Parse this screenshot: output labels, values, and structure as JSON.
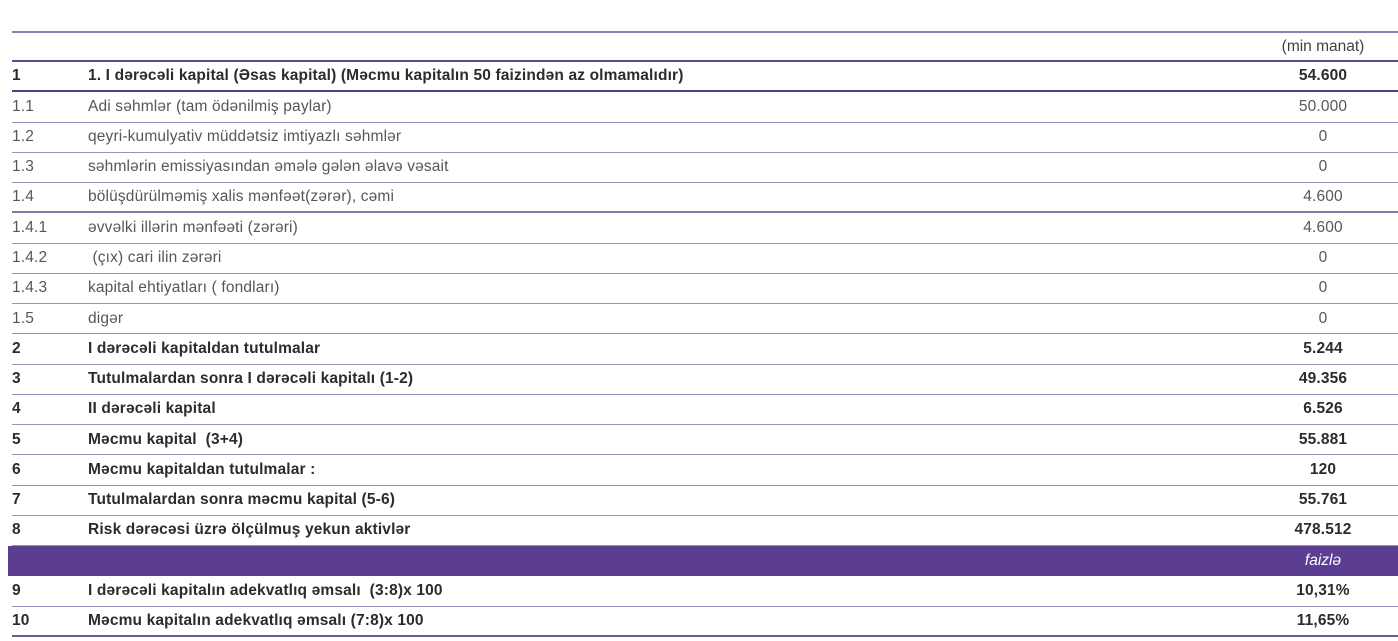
{
  "table": {
    "unit_label": "(min manat)",
    "band_color": "#5b3d92",
    "colors": {
      "separator_line": "#9c8fc0",
      "strong_line": "#5e4a92",
      "bold_text": "#2b2b30",
      "regular_text": "#56565c",
      "band_text": "#ffffff"
    },
    "rows": [
      {
        "num": "1",
        "label": "1. I dərəcəli kapital (Əsas kapital) (Məcmu kapitalın 50 faizindən az olmamalıdır)",
        "value": "54.600",
        "bold": true
      },
      {
        "num": "1.1",
        "label": "Adi səhmlər (tam ödənilmiş paylar)",
        "value": "50.000",
        "bold": false
      },
      {
        "num": "1.2",
        "label": "qeyri-kumulyativ müddətsiz imtiyazlı səhmlər",
        "value": "0",
        "bold": false
      },
      {
        "num": "1.3",
        "label": "səhmlərin emissiyasından əmələ gələn əlavə vəsait",
        "value": "0",
        "bold": false
      },
      {
        "num": "1.4",
        "label": "bölüşdürülməmiş xalis mənfəət(zərər), cəmi",
        "value": "4.600",
        "bold": false
      },
      {
        "num": "1.4.1",
        "label": "əvvəlki illərin mənfəəti (zərəri)",
        "value": "4.600",
        "bold": false
      },
      {
        "num": "1.4.2",
        "label": " (çıx) cari ilin zərəri",
        "value": "0",
        "bold": false
      },
      {
        "num": "1.4.3",
        "label": "kapital ehtiyatları ( fondları)",
        "value": "0",
        "bold": false
      },
      {
        "num": "1.5",
        "label": "digər",
        "value": "0",
        "bold": false
      },
      {
        "num": "2",
        "label": "I dərəcəli kapitaldan tutulmalar",
        "value": "5.244",
        "bold": true
      },
      {
        "num": "3",
        "label": "Tutulmalardan sonra I dərəcəli kapitalı (1-2)",
        "value": "49.356",
        "bold": true
      },
      {
        "num": "4",
        "label": "II dərəcəli kapital",
        "value": "6.526",
        "bold": true
      },
      {
        "num": "5",
        "label": "Məcmu kapital  (3+4)",
        "value": "55.881",
        "bold": true
      },
      {
        "num": "6",
        "label": "Məcmu kapitaldan tutulmalar :",
        "value": "120",
        "bold": true
      },
      {
        "num": "7",
        "label": "Tutulmalardan sonra məcmu kapital (5-6)",
        "value": "55.761",
        "bold": true
      },
      {
        "num": "8",
        "label": "Risk dərəcəsi üzrə ölçülmuş yekun aktivlər",
        "value": "478.512",
        "bold": true
      },
      {
        "type": "band",
        "label": "",
        "value": "faizlə"
      },
      {
        "num": "9",
        "label": "I dərəcəli kapitalın adekvatlıq əmsalı  (3:8)x 100",
        "value": "10,31%",
        "bold": true
      },
      {
        "num": "10",
        "label": "Məcmu kapitalın adekvatlıq əmsalı (7:8)x 100",
        "value": "11,65%",
        "bold": true
      }
    ]
  }
}
